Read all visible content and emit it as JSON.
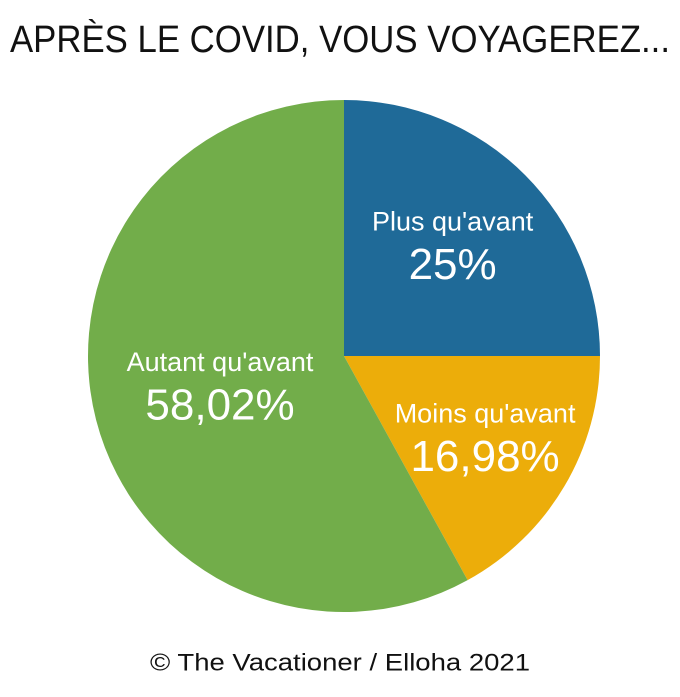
{
  "chart_data": {
    "type": "pie",
    "title": "APRÈS LE COVID, VOUS VOYAGEREZ...",
    "categories": [
      "Plus qu'avant",
      "Moins qu'avant",
      "Autant qu'avant"
    ],
    "values": [
      25,
      16.98,
      58.02
    ],
    "value_labels": [
      "25%",
      "16,98%",
      "58,02%"
    ],
    "colors": [
      "#1f6a98",
      "#ecad0a",
      "#72ad4a"
    ],
    "source": "© The Vacationer / Elloha 2021"
  }
}
